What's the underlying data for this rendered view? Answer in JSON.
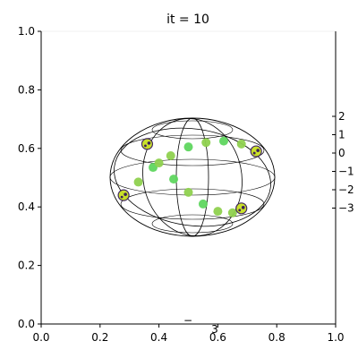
{
  "chart_data": {
    "type": "scatter",
    "title": "it = 10",
    "xlim": [
      0,
      1
    ],
    "ylim": [
      0,
      1
    ],
    "x_ticks": [
      "0.0",
      "0.2",
      "0.4",
      "0.6",
      "0.8",
      "1.0"
    ],
    "y_ticks": [
      "0.0",
      "0.2",
      "0.4",
      "0.6",
      "0.8",
      "1.0"
    ],
    "z_ticks": [
      "2",
      "1",
      "0",
      "−1",
      "−2",
      "−3"
    ],
    "bottom_ticks": [
      "−",
      "3"
    ],
    "grid": false,
    "wireframe": "sphere",
    "colormap": [
      "#3b1f5a",
      "#8fd14f",
      "#5fd65f",
      "#c8e020"
    ],
    "series": [
      {
        "points": [
          {
            "x": 0.28,
            "y": 0.44
          },
          {
            "x": 0.33,
            "y": 0.485
          },
          {
            "x": 0.38,
            "y": 0.535
          },
          {
            "x": 0.44,
            "y": 0.575
          },
          {
            "x": 0.5,
            "y": 0.605
          },
          {
            "x": 0.56,
            "y": 0.62
          },
          {
            "x": 0.62,
            "y": 0.625
          },
          {
            "x": 0.68,
            "y": 0.615
          },
          {
            "x": 0.73,
            "y": 0.59
          }
        ]
      },
      {
        "points": [
          {
            "x": 0.36,
            "y": 0.615
          },
          {
            "x": 0.4,
            "y": 0.55
          },
          {
            "x": 0.45,
            "y": 0.495
          },
          {
            "x": 0.5,
            "y": 0.45
          },
          {
            "x": 0.55,
            "y": 0.41
          },
          {
            "x": 0.6,
            "y": 0.385
          },
          {
            "x": 0.65,
            "y": 0.38
          },
          {
            "x": 0.68,
            "y": 0.395
          }
        ]
      }
    ]
  }
}
